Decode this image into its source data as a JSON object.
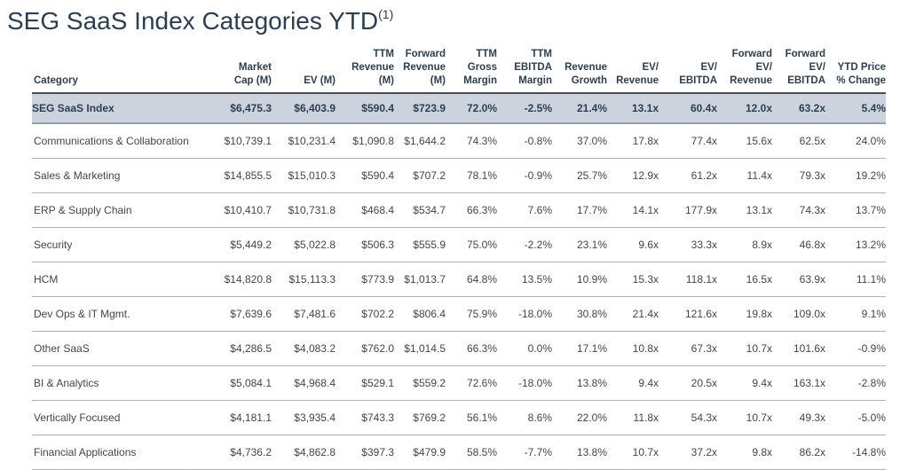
{
  "page": {
    "title": "SEG SaaS Index Categories YTD",
    "title_superscript": "(1)"
  },
  "colors": {
    "title_text": "#2d3e50",
    "header_text": "#2d3e50",
    "body_text": "#41464c",
    "highlight_row_bg": "#cdd3dd",
    "header_border": "#4a4e54",
    "row_separator": "#b0b2b5",
    "highlight_border": "#9aa0a9"
  },
  "chart_data": {
    "type": "table",
    "title": "SEG SaaS Index Categories YTD (1)",
    "columns": [
      "Category",
      "Market Cap (M)",
      "EV (M)",
      "TTM Revenue (M)",
      "Forward Revenue (M)",
      "TTM Gross Margin",
      "TTM EBITDA Margin",
      "Revenue Growth",
      "EV/Revenue",
      "EV/EBITDA",
      "Forward EV/Revenue",
      "Forward EV/EBITDA",
      "YTD Price % Change"
    ],
    "header_lines": [
      "Category",
      "Market\nCap (M)",
      "EV (M)",
      "TTM\nRevenue\n(M)",
      "Forward\nRevenue\n(M)",
      "TTM Gross\nMargin",
      "TTM\nEBITDA\nMargin",
      "Revenue\nGrowth",
      "EV/\nRevenue",
      "EV/\nEBITDA",
      "Forward\nEV/\nRevenue",
      "Forward\nEV/\nEBITDA",
      "YTD Price\n% Change"
    ],
    "rows": [
      {
        "category": "SEG SaaS Index",
        "highlight": true,
        "values": [
          "$6,475.3",
          "$6,403.9",
          "$590.4",
          "$723.9",
          "72.0%",
          "-2.5%",
          "21.4%",
          "13.1x",
          "60.4x",
          "12.0x",
          "63.2x",
          "5.4%"
        ]
      },
      {
        "category": "Communications & Collaboration",
        "highlight": false,
        "values": [
          "$10,739.1",
          "$10,231.4",
          "$1,090.8",
          "$1,644.2",
          "74.3%",
          "-0.8%",
          "37.0%",
          "17.8x",
          "77.4x",
          "15.6x",
          "62.5x",
          "24.0%"
        ]
      },
      {
        "category": "Sales & Marketing",
        "highlight": false,
        "values": [
          "$14,855.5",
          "$15,010.3",
          "$590.4",
          "$707.2",
          "78.1%",
          "-0.9%",
          "25.7%",
          "12.9x",
          "61.2x",
          "11.4x",
          "79.3x",
          "19.2%"
        ]
      },
      {
        "category": "ERP & Supply Chain",
        "highlight": false,
        "values": [
          "$10,410.7",
          "$10,731.8",
          "$468.4",
          "$534.7",
          "66.3%",
          "7.6%",
          "17.7%",
          "14.1x",
          "177.9x",
          "13.1x",
          "74.3x",
          "13.7%"
        ]
      },
      {
        "category": "Security",
        "highlight": false,
        "values": [
          "$5,449.2",
          "$5,022.8",
          "$506.3",
          "$555.9",
          "75.0%",
          "-2.2%",
          "23.1%",
          "9.6x",
          "33.3x",
          "8.9x",
          "46.8x",
          "13.2%"
        ]
      },
      {
        "category": "HCM",
        "highlight": false,
        "values": [
          "$14,820.8",
          "$15,113.3",
          "$773.9",
          "$1,013.7",
          "64.8%",
          "13.5%",
          "10.9%",
          "15.3x",
          "118.1x",
          "16.5x",
          "63.9x",
          "11.1%"
        ]
      },
      {
        "category": "Dev Ops & IT Mgmt.",
        "highlight": false,
        "values": [
          "$7,639.6",
          "$7,481.6",
          "$702.2",
          "$806.4",
          "75.9%",
          "-18.0%",
          "30.8%",
          "21.4x",
          "121.6x",
          "19.8x",
          "109.0x",
          "9.1%"
        ]
      },
      {
        "category": "Other SaaS",
        "highlight": false,
        "values": [
          "$4,286.5",
          "$4,083.2",
          "$762.0",
          "$1,014.5",
          "66.3%",
          "0.0%",
          "17.1%",
          "10.8x",
          "67.3x",
          "10.7x",
          "101.6x",
          "-0.9%"
        ]
      },
      {
        "category": "BI & Analytics",
        "highlight": false,
        "values": [
          "$5,084.1",
          "$4,968.4",
          "$529.1",
          "$559.2",
          "72.6%",
          "-18.0%",
          "13.8%",
          "9.4x",
          "20.5x",
          "9.4x",
          "163.1x",
          "-2.8%"
        ]
      },
      {
        "category": "Vertically Focused",
        "highlight": false,
        "values": [
          "$4,181.1",
          "$3,935.4",
          "$743.3",
          "$769.2",
          "56.1%",
          "8.6%",
          "22.0%",
          "11.8x",
          "54.3x",
          "10.7x",
          "49.3x",
          "-5.0%"
        ]
      },
      {
        "category": "Financial Applications",
        "highlight": false,
        "values": [
          "$4,736.2",
          "$4,862.8",
          "$397.3",
          "$479.9",
          "58.5%",
          "-7.7%",
          "13.8%",
          "10.7x",
          "37.2x",
          "9.8x",
          "86.2x",
          "-14.8%"
        ]
      }
    ]
  }
}
